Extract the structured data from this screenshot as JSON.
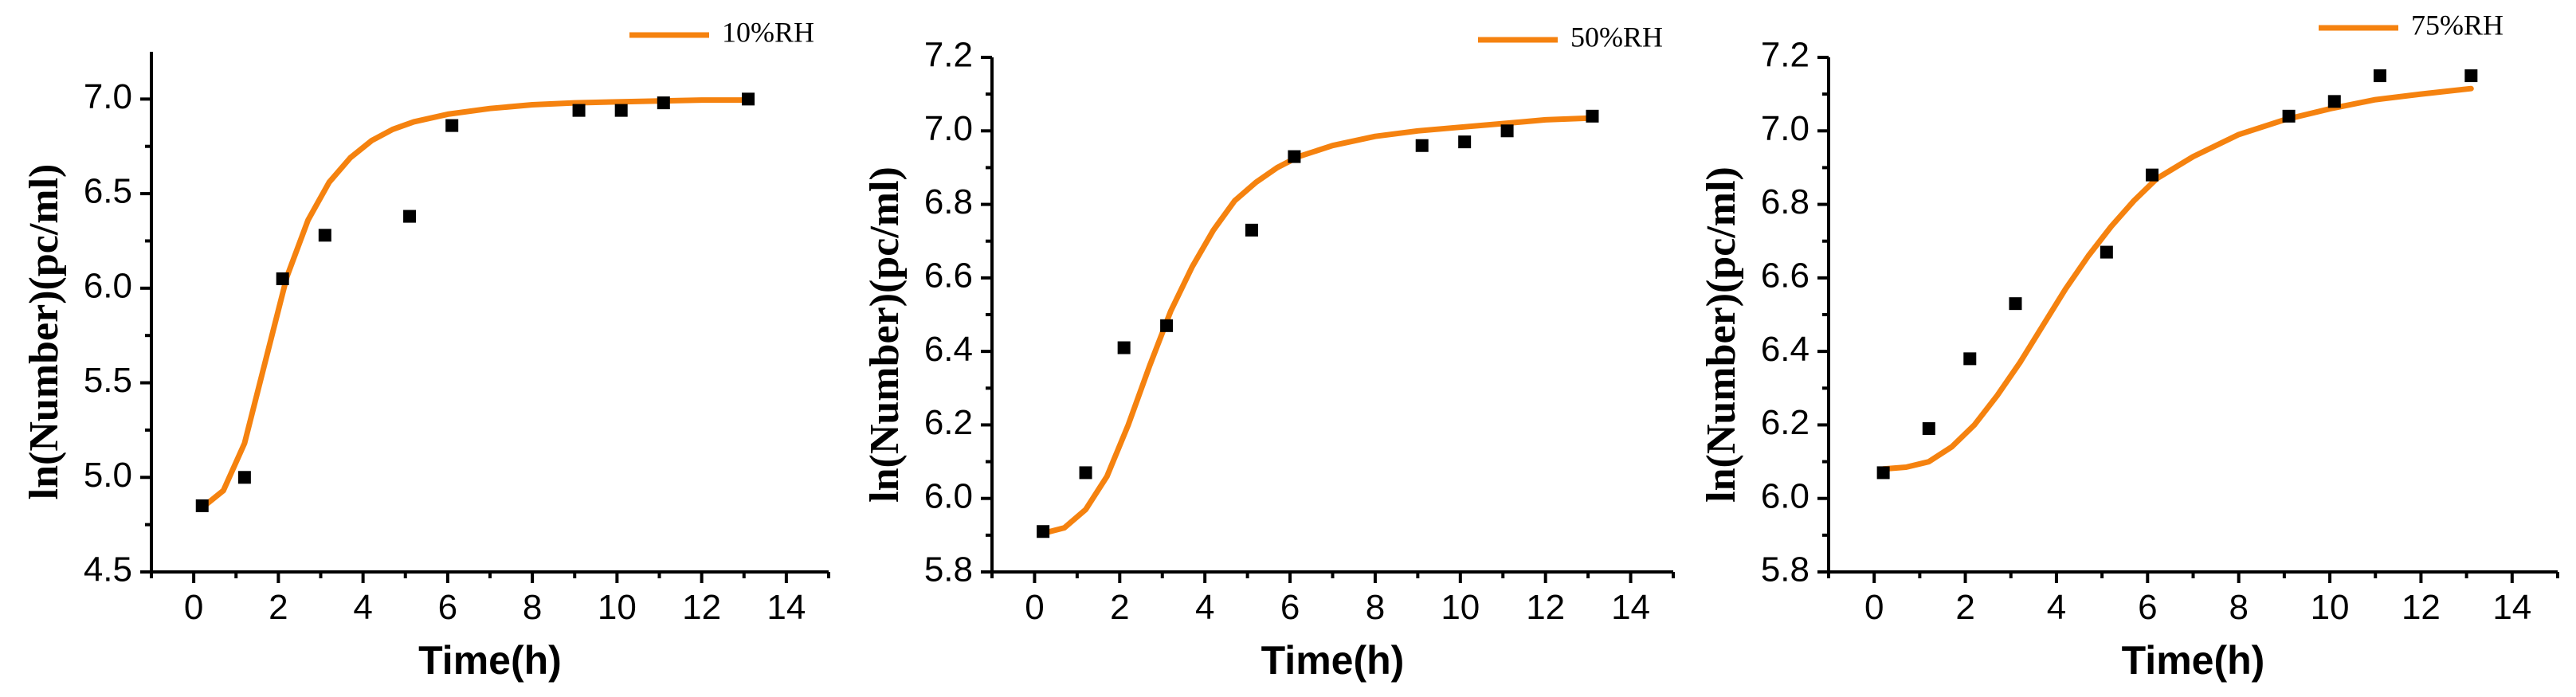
{
  "colors": {
    "fit_line": "#F5820F",
    "marker": "#000000",
    "axis": "#000000"
  },
  "chart_data": [
    {
      "type": "scatter",
      "legend": "10%RH",
      "legend_position": "top-right",
      "xlabel": "Time(h)",
      "ylabel": "ln(Number)(pc/ml)",
      "xlim": [
        -1,
        15
      ],
      "ylim": [
        4.5,
        7.25
      ],
      "xticks": [
        "0",
        "2",
        "4",
        "6",
        "8",
        "10",
        "12",
        "14"
      ],
      "yticks": [
        "4.5",
        "5.0",
        "5.5",
        "6.0",
        "6.5",
        "7.0"
      ],
      "x": [
        0.2,
        1.2,
        2.1,
        3.1,
        5.1,
        6.1,
        9.1,
        10.1,
        11.1,
        13.1
      ],
      "y": [
        4.85,
        5.0,
        6.05,
        6.28,
        6.38,
        6.86,
        6.94,
        6.94,
        6.98,
        7.0
      ],
      "fit": {
        "x": [
          0.2,
          0.7,
          1.2,
          1.7,
          2.2,
          2.7,
          3.2,
          3.7,
          4.2,
          4.7,
          5.2,
          6.0,
          7.0,
          8.0,
          9.0,
          10.0,
          11.0,
          12.0,
          13.1
        ],
        "y": [
          4.84,
          4.93,
          5.18,
          5.62,
          6.06,
          6.36,
          6.56,
          6.69,
          6.78,
          6.84,
          6.88,
          6.92,
          6.95,
          6.97,
          6.98,
          6.985,
          6.99,
          6.995,
          6.995
        ]
      }
    },
    {
      "type": "scatter",
      "legend": "50%RH",
      "legend_position": "top-right",
      "xlabel": "Time(h)",
      "ylabel": "ln(Number)(pc/ml)",
      "xlim": [
        -1,
        15
      ],
      "ylim": [
        5.8,
        7.2
      ],
      "xticks": [
        "0",
        "2",
        "4",
        "6",
        "8",
        "10",
        "12",
        "14"
      ],
      "yticks": [
        "5.8",
        "6.0",
        "6.2",
        "6.4",
        "6.6",
        "6.8",
        "7.0",
        "7.2"
      ],
      "x": [
        0.2,
        1.2,
        2.1,
        3.1,
        5.1,
        6.1,
        9.1,
        10.1,
        11.1,
        13.1
      ],
      "y": [
        5.91,
        6.07,
        6.41,
        6.47,
        6.73,
        6.93,
        6.96,
        6.97,
        7.0,
        7.04
      ],
      "fit": {
        "x": [
          0.2,
          0.7,
          1.2,
          1.7,
          2.2,
          2.7,
          3.2,
          3.7,
          4.2,
          4.7,
          5.2,
          5.7,
          6.2,
          7.0,
          8.0,
          9.0,
          10.0,
          11.0,
          12.0,
          13.1
        ],
        "y": [
          5.905,
          5.92,
          5.97,
          6.06,
          6.2,
          6.36,
          6.51,
          6.63,
          6.73,
          6.81,
          6.86,
          6.9,
          6.93,
          6.96,
          6.985,
          7.0,
          7.01,
          7.02,
          7.03,
          7.035
        ]
      }
    },
    {
      "type": "scatter",
      "legend": "75%RH",
      "legend_position": "top-right",
      "xlabel": "Time(h)",
      "ylabel": "ln(Number)(pc/ml)",
      "xlim": [
        -1,
        15
      ],
      "ylim": [
        5.8,
        7.2
      ],
      "xticks": [
        "0",
        "2",
        "4",
        "6",
        "8",
        "10",
        "12",
        "14"
      ],
      "yticks": [
        "5.8",
        "6.0",
        "6.2",
        "6.4",
        "6.6",
        "6.8",
        "7.0",
        "7.2"
      ],
      "x": [
        0.2,
        1.2,
        2.1,
        3.1,
        5.1,
        6.1,
        9.1,
        10.1,
        11.1,
        13.1
      ],
      "y": [
        6.07,
        6.19,
        6.38,
        6.53,
        6.67,
        6.88,
        7.04,
        7.08,
        7.15,
        7.15
      ],
      "fit": {
        "x": [
          0.2,
          0.7,
          1.2,
          1.7,
          2.2,
          2.7,
          3.2,
          3.7,
          4.2,
          4.7,
          5.2,
          5.7,
          6.2,
          7.0,
          8.0,
          9.0,
          10.0,
          11.0,
          12.0,
          13.1
        ],
        "y": [
          6.08,
          6.085,
          6.1,
          6.14,
          6.2,
          6.28,
          6.37,
          6.47,
          6.57,
          6.66,
          6.74,
          6.81,
          6.87,
          6.93,
          6.99,
          7.03,
          7.06,
          7.085,
          7.1,
          7.115
        ]
      }
    }
  ]
}
